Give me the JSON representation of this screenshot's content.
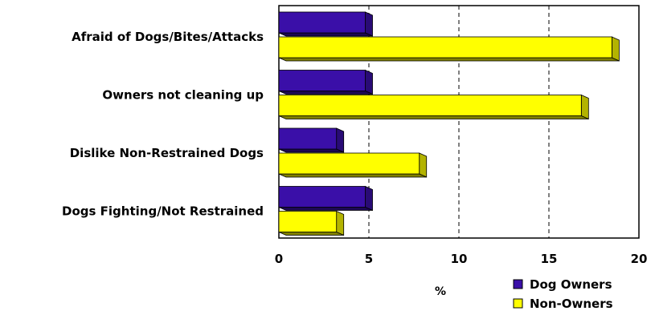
{
  "chart_data": {
    "type": "bar",
    "orientation": "horizontal",
    "style": "3d",
    "categories": [
      "Afraid of Dogs/Bites/Attacks",
      "Owners not cleaning up",
      "Dislike Non-Restrained Dogs",
      "Dogs Fighting/Not Restrained"
    ],
    "series": [
      {
        "name": "Dog Owners",
        "values": [
          4.8,
          4.8,
          3.2,
          4.8
        ]
      },
      {
        "name": "Non-Owners",
        "values": [
          18.5,
          16.8,
          7.8,
          3.2
        ]
      }
    ],
    "colors": {
      "Dog Owners": "#3a0fa8",
      "Non-Owners": "#ffff00"
    },
    "xlabel": "%",
    "xlim": [
      0,
      20
    ],
    "xticks": [
      0,
      5,
      10,
      15,
      20
    ],
    "grid": "vertical dashed",
    "legend": "bottom-right"
  }
}
